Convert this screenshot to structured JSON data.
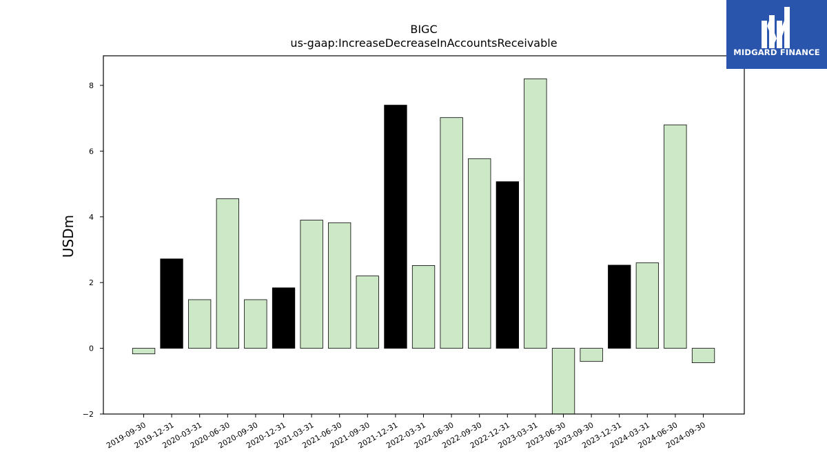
{
  "chart_data": {
    "type": "bar",
    "title": "BIGC",
    "subtitle": "us-gaap:IncreaseDecreaseInAccountsReceivable",
    "xlabel": "",
    "ylabel": "USDm",
    "ylim": [
      -2,
      8.9
    ],
    "yticks": [
      -2,
      0,
      2,
      4,
      6,
      8
    ],
    "grid": false,
    "categories": [
      "2019-09-30",
      "2019-12-31",
      "2020-03-31",
      "2020-06-30",
      "2020-09-30",
      "2020-12-31",
      "2021-03-31",
      "2021-06-30",
      "2021-09-30",
      "2021-12-31",
      "2022-03-31",
      "2022-06-30",
      "2022-09-30",
      "2022-12-31",
      "2023-03-31",
      "2023-06-30",
      "2023-09-30",
      "2023-12-31",
      "2024-03-31",
      "2024-06-30",
      "2024-09-30"
    ],
    "values": [
      -0.17,
      2.72,
      1.48,
      4.55,
      1.48,
      1.84,
      3.9,
      3.82,
      2.2,
      7.4,
      2.52,
      7.02,
      5.77,
      5.07,
      8.2,
      -2.1,
      -0.4,
      2.53,
      2.6,
      6.8,
      -0.44
    ],
    "bar_colors": [
      "#cde8c6",
      "#000000",
      "#cde8c6",
      "#cde8c6",
      "#cde8c6",
      "#000000",
      "#cde8c6",
      "#cde8c6",
      "#cde8c6",
      "#000000",
      "#cde8c6",
      "#cde8c6",
      "#cde8c6",
      "#000000",
      "#cde8c6",
      "#cde8c6",
      "#cde8c6",
      "#000000",
      "#cde8c6",
      "#cde8c6",
      "#cde8c6"
    ]
  },
  "logo": {
    "text": "MIDGARD FINANCE",
    "background": "#2a55ad",
    "icon": "midgard-logo-icon"
  }
}
